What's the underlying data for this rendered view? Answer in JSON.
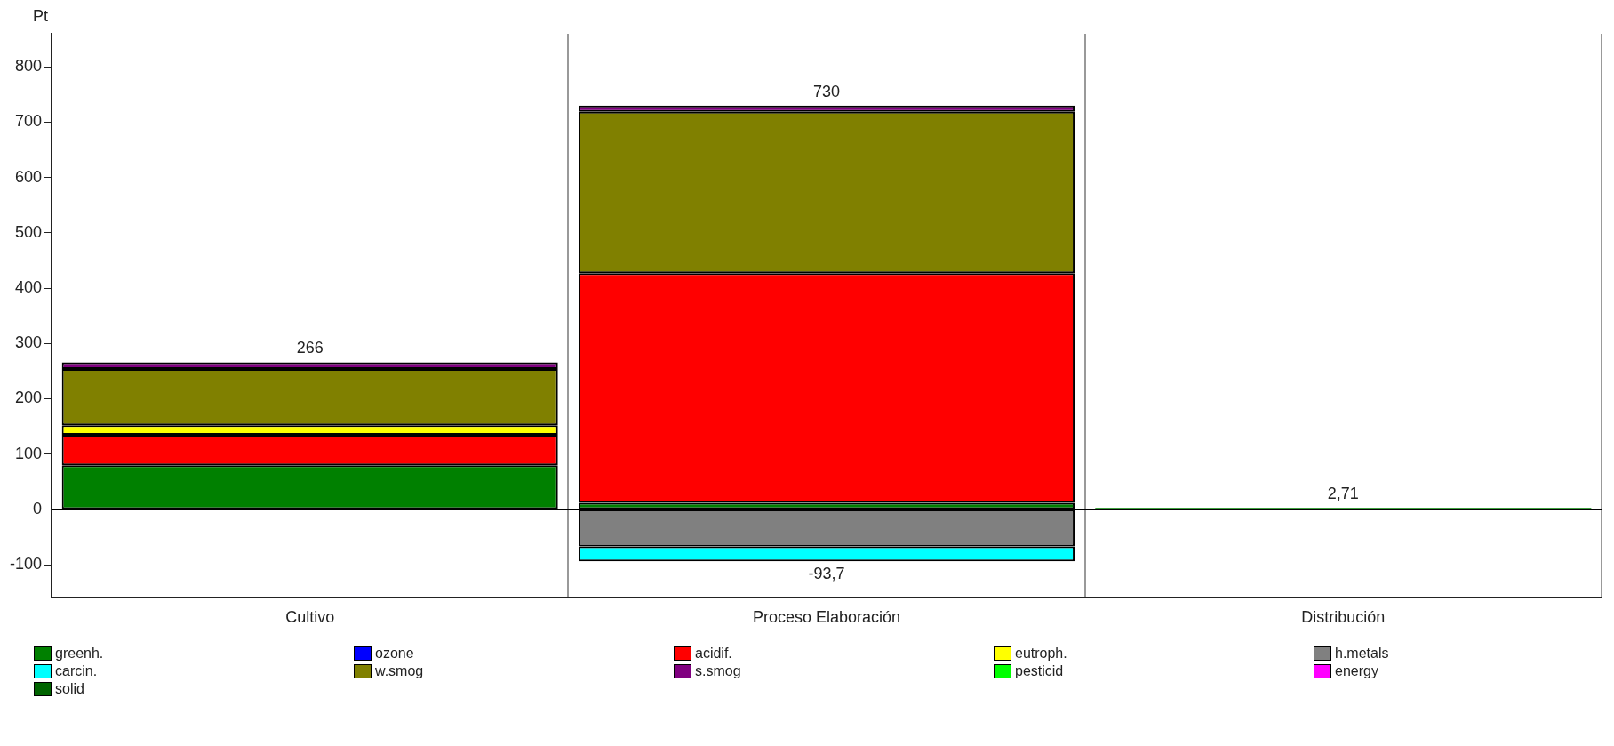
{
  "chart_data": {
    "type": "bar",
    "stacked": true,
    "ylabel": "Pt",
    "categories": [
      "Cultivo",
      "Proceso Elaboración",
      "Distribución"
    ],
    "series": [
      {
        "name": "greenh.",
        "color": "#008000",
        "values": [
          80,
          12,
          2.71
        ]
      },
      {
        "name": "ozone",
        "color": "#0000ff",
        "values": [
          null,
          null,
          null
        ]
      },
      {
        "name": "acidif.",
        "color": "#ff0000",
        "values": [
          55,
          415,
          null
        ]
      },
      {
        "name": "eutroph.",
        "color": "#ffff00",
        "values": [
          17,
          null,
          null
        ]
      },
      {
        "name": "h.metals",
        "color": "#808080",
        "values": [
          null,
          -67,
          null
        ]
      },
      {
        "name": "carcin.",
        "color": "#00ffff",
        "values": [
          null,
          -27,
          null
        ]
      },
      {
        "name": "w.smog",
        "color": "#808000",
        "values": [
          102,
          292,
          null
        ]
      },
      {
        "name": "s.smog",
        "color": "#800080",
        "values": [
          12,
          11,
          null
        ]
      },
      {
        "name": "pesticid",
        "color": "#00ff00",
        "values": [
          null,
          null,
          null
        ]
      },
      {
        "name": "energy",
        "color": "#ff00ff",
        "values": [
          null,
          null,
          null
        ]
      },
      {
        "name": "solid",
        "color": "#006400",
        "values": [
          null,
          null,
          null
        ]
      }
    ],
    "annotations": [
      {
        "text": "266",
        "x": "Cultivo",
        "y": 266
      },
      {
        "text": "730",
        "x": "Proceso Elaboración",
        "y": 730
      },
      {
        "text": "2,71",
        "x": "Distribución",
        "y": 2.71
      },
      {
        "text": "-93,7",
        "x": "Proceso Elaboración",
        "y": -93.7
      }
    ],
    "ylim": [
      -160,
      860
    ],
    "yticks": [
      -100,
      0,
      100,
      200,
      300,
      400,
      500,
      600,
      700,
      800
    ],
    "grid": "x",
    "legend": "bottom"
  }
}
